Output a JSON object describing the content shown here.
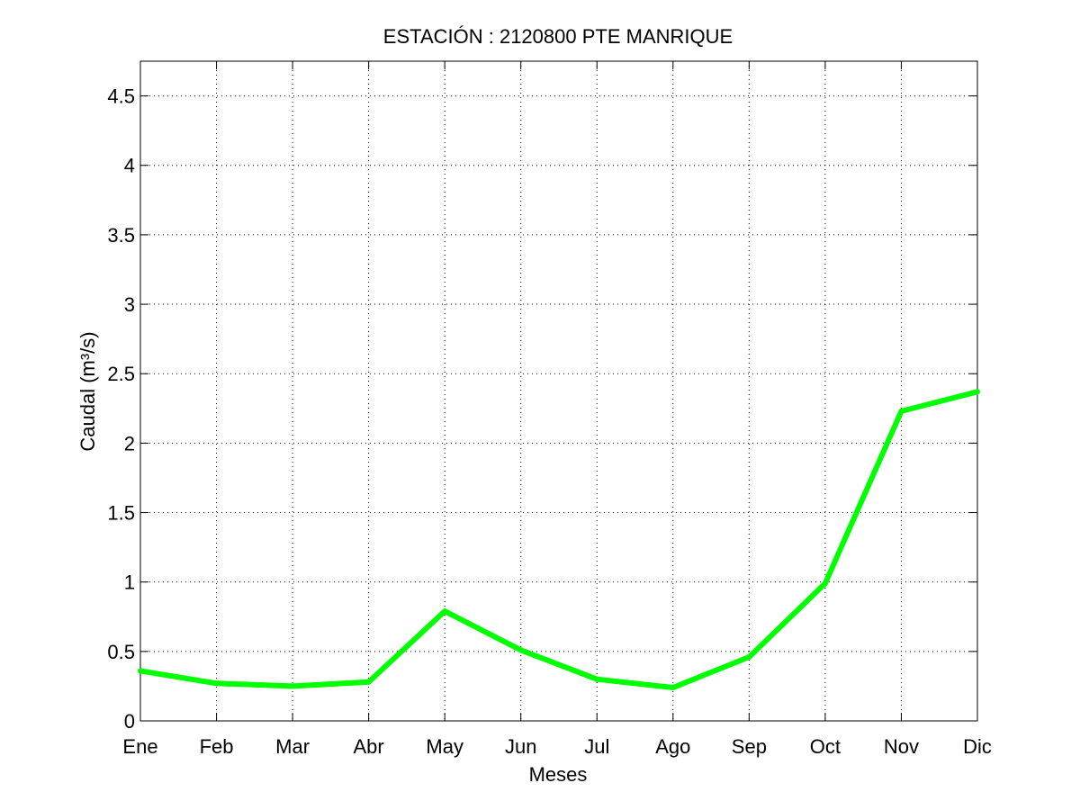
{
  "chart_data": {
    "type": "line",
    "title": "ESTACIÓN :  2120800  PTE MANRIQUE",
    "xlabel": "Meses",
    "ylabel": "Caudal (m³/s)",
    "categories": [
      "Ene",
      "Feb",
      "Mar",
      "Abr",
      "May",
      "Jun",
      "Jul",
      "Ago",
      "Sep",
      "Oct",
      "Nov",
      "Dic"
    ],
    "ylim": [
      0,
      4.75
    ],
    "yticks": [
      0,
      0.5,
      1,
      1.5,
      2,
      2.5,
      3,
      3.5,
      4,
      4.5
    ],
    "ytick_labels": [
      "0",
      "0.5",
      "1",
      "1.5",
      "2",
      "2.5",
      "3",
      "3.5",
      "4",
      "4.5"
    ],
    "grid": true,
    "series": [
      {
        "values": [
          0.36,
          0.27,
          0.25,
          0.28,
          0.79,
          0.51,
          0.3,
          0.24,
          0.46,
          0.99,
          2.23,
          2.37
        ],
        "color": "#00ff00"
      }
    ]
  }
}
